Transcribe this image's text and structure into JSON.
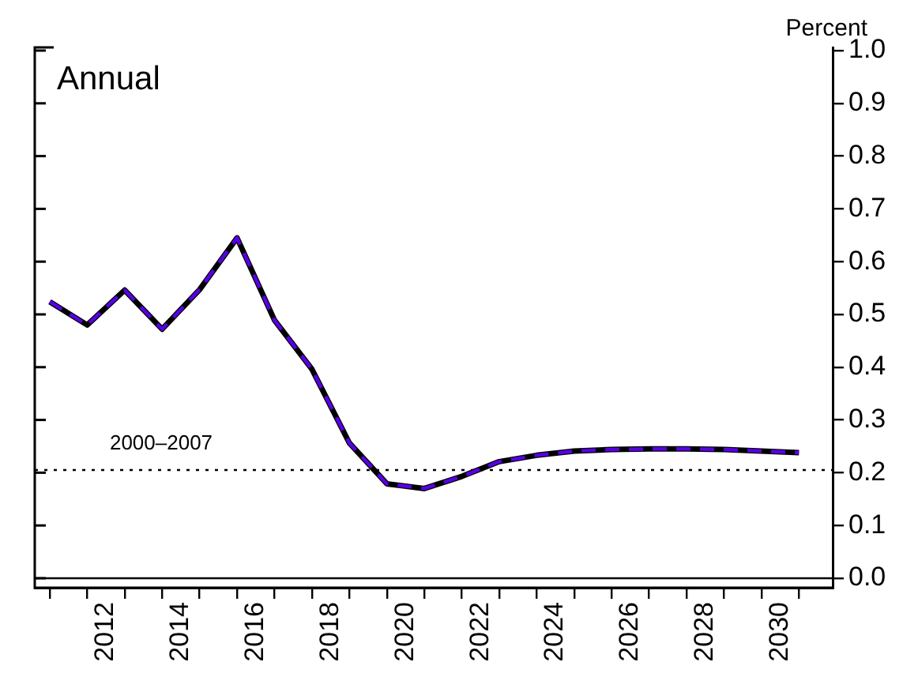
{
  "chart_data": {
    "type": "line",
    "title": "Annual",
    "ylabel": "Percent",
    "x": [
      2010.5,
      2011.5,
      2012.5,
      2013.5,
      2014.5,
      2015.5,
      2016.5,
      2017.5,
      2018.5,
      2019.5,
      2020.5,
      2021.5,
      2022.5,
      2023.5,
      2024.5,
      2025.5,
      2026.5,
      2027.5,
      2028.5,
      2029.5,
      2030.5
    ],
    "series": [
      {
        "color": "#000000",
        "line_style": "solid",
        "values": [
          0.524,
          0.48,
          0.546,
          0.472,
          0.547,
          0.645,
          0.489,
          0.396,
          0.256,
          0.179,
          0.17,
          0.193,
          0.221,
          0.233,
          0.241,
          0.244,
          0.245,
          0.245,
          0.244,
          0.241,
          0.238
        ]
      },
      {
        "color": "#5a00e6",
        "line_style": "dashed",
        "values": [
          0.524,
          0.48,
          0.546,
          0.472,
          0.547,
          0.645,
          0.489,
          0.396,
          0.256,
          0.179,
          0.17,
          0.193,
          0.221,
          0.233,
          0.241,
          0.244,
          0.245,
          0.245,
          0.244,
          0.241,
          0.238
        ]
      }
    ],
    "xlim": [
      2010.1,
      2031.4
    ],
    "xticks": [
      {
        "value": 2010.5,
        "label": null
      },
      {
        "value": 2011.5,
        "label": null
      },
      2012,
      {
        "value": 2012.5,
        "label": null
      },
      {
        "value": 2013.5,
        "label": null
      },
      2014,
      {
        "value": 2014.5,
        "label": null
      },
      {
        "value": 2015.5,
        "label": null
      },
      2016,
      {
        "value": 2016.5,
        "label": null
      },
      {
        "value": 2017.5,
        "label": null
      },
      2018,
      {
        "value": 2018.5,
        "label": null
      },
      {
        "value": 2019.5,
        "label": null
      },
      2020,
      {
        "value": 2020.5,
        "label": null
      },
      {
        "value": 2021.5,
        "label": null
      },
      2022,
      {
        "value": 2022.5,
        "label": null
      },
      {
        "value": 2023.5,
        "label": null
      },
      2024,
      {
        "value": 2024.5,
        "label": null
      },
      {
        "value": 2025.5,
        "label": null
      },
      2026,
      {
        "value": 2026.5,
        "label": null
      },
      {
        "value": 2027.5,
        "label": null
      },
      2028,
      {
        "value": 2028.5,
        "label": null
      },
      {
        "value": 2029.5,
        "label": null
      },
      2030,
      {
        "value": 2030.5,
        "label": null
      }
    ],
    "ylim": [
      -0.018,
      1.006
    ],
    "yticks": [
      {
        "value": 0,
        "label": "0.0"
      },
      0.1,
      0.2,
      0.3,
      0.4,
      0.5,
      0.6,
      0.7,
      0.8,
      0.9,
      {
        "value": 1,
        "label": "1.0"
      }
    ],
    "ref_lines": [
      {
        "axis": "y",
        "value": 0.205,
        "label": "2000–2007",
        "line_style": "dotted",
        "color": "#000000"
      },
      {
        "axis": "y",
        "value": 0,
        "line_style": "solid",
        "color": "#000000"
      }
    ],
    "grid": false,
    "legend": false,
    "marker": "none"
  }
}
